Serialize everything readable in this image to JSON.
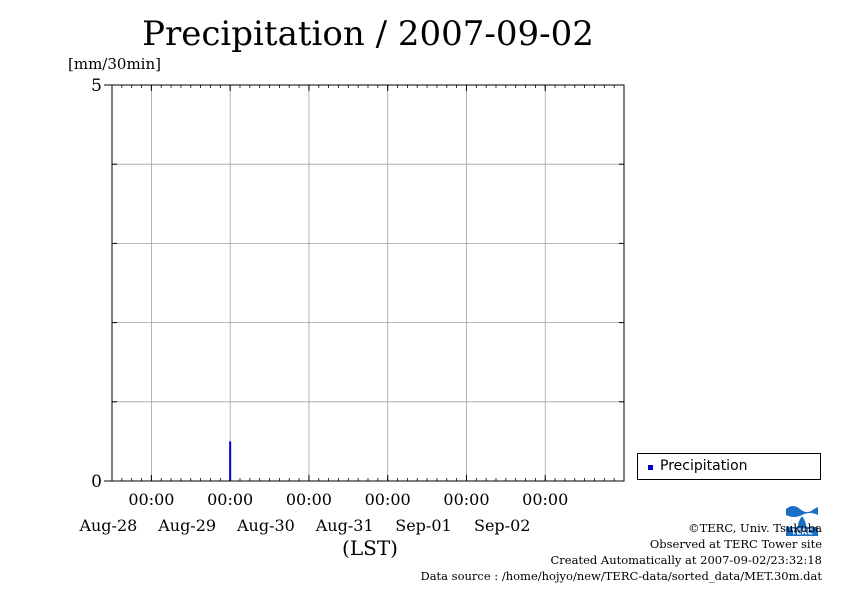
{
  "title": "Precipitation / 2007-09-02",
  "unit_label": "[mm/30min]",
  "legend": {
    "label": "Precipitation"
  },
  "credits": {
    "copyright": "©TERC, Univ. Tsukuba",
    "site": "Observed at TERC Tower site",
    "created": "Created Automatically at 2007-09-02/23:32:18",
    "source": "Data source : /home/hojyo/new/TERC-data/sorted_data/MET.30m.dat"
  },
  "chart_data": {
    "type": "bar",
    "title": "Precipitation / 2007-09-02",
    "xlabel": "(LST)",
    "ylabel": "[mm/30min]",
    "ylim": [
      0,
      5
    ],
    "y_ticks": [
      "0",
      "5"
    ],
    "x_ticks": [
      {
        "time": "00:00",
        "date": "Aug-28"
      },
      {
        "time": "00:00",
        "date": "Aug-29"
      },
      {
        "time": "00:00",
        "date": "Aug-30"
      },
      {
        "time": "00:00",
        "date": "Aug-31"
      },
      {
        "time": "00:00",
        "date": "Sep-01"
      },
      {
        "time": "00:00",
        "date": "Sep-02"
      }
    ],
    "xlim": [
      "2007-08-27T12:00",
      "2007-09-03T00:00"
    ],
    "grid": true,
    "legend_position": "bottom-right",
    "series": [
      {
        "name": "Precipitation",
        "color": "#0000cc",
        "x": [
          "2007-08-29T00:00"
        ],
        "values": [
          0.5
        ]
      }
    ]
  }
}
